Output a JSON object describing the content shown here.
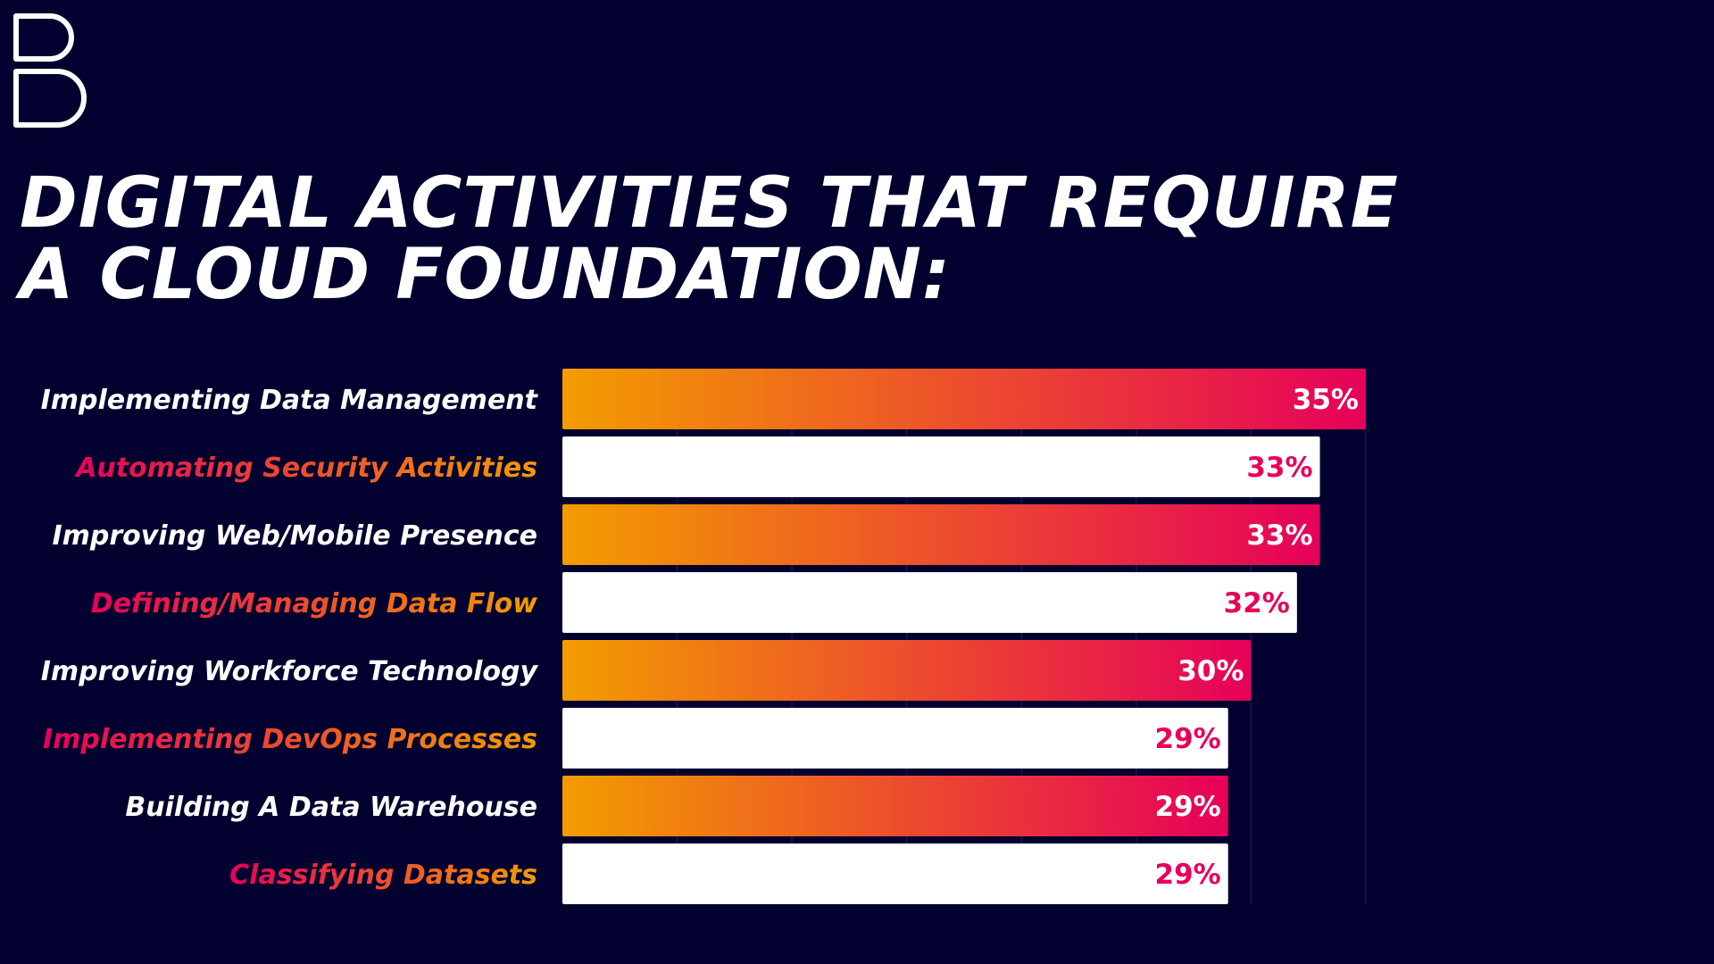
{
  "logo": {
    "name": "brand-b-logo",
    "stroke_color": "#ffffff"
  },
  "title_lines": [
    "DIGITAL ACTIVITIES THAT REQUIRE",
    "A CLOUD FOUNDATION:"
  ],
  "colors": {
    "background": "#01002e",
    "gradient_start": "#f39c00",
    "gradient_end": "#e6005a",
    "white_bar": "#ffffff",
    "grid": "#13124a"
  },
  "chart_data": {
    "type": "bar",
    "orientation": "horizontal",
    "title": "DIGITAL ACTIVITIES THAT REQUIRE A CLOUD FOUNDATION:",
    "categories": [
      "Implementing Data Management",
      "Automating Security Activities",
      "Improving Web/Mobile Presence",
      "Defining/Managing Data Flow",
      "Improving Workforce Technology",
      "Implementing DevOps Processes",
      "Building A Data Warehouse",
      "Classifying Datasets"
    ],
    "values": [
      35,
      33,
      33,
      32,
      30,
      29,
      29,
      29
    ],
    "value_labels": [
      "35%",
      "33%",
      "33%",
      "32%",
      "30%",
      "29%",
      "29%",
      "29%"
    ],
    "bar_styles": [
      "gradient",
      "white",
      "gradient",
      "white",
      "gradient",
      "white",
      "gradient",
      "white"
    ],
    "xlim": [
      0,
      35
    ],
    "grid": true,
    "legend": "none"
  }
}
